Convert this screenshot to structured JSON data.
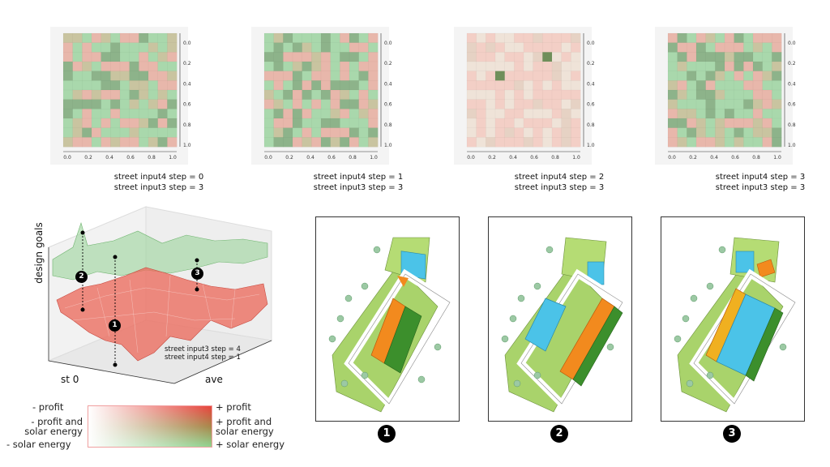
{
  "heatmaps": [
    {
      "caption_line1": "street input4 step = 0",
      "caption_line2": "street input3 step = 3"
    },
    {
      "caption_line1": "street input4 step = 1",
      "caption_line2": "street input3 step = 3"
    },
    {
      "caption_line1": "street input4 step = 2",
      "caption_line2": "street input3 step = 3"
    },
    {
      "caption_line1": "street input4 step = 3",
      "caption_line2": "street input3 step = 3"
    }
  ],
  "heatmap_axis": {
    "x_ticks": [
      "0.0",
      "0.2",
      "0.4",
      "0.6",
      "0.8",
      "1.0"
    ],
    "y_ticks": [
      "0.0",
      "0.2",
      "0.4",
      "0.6",
      "0.8",
      "1.0"
    ]
  },
  "surface_plot": {
    "z_label": "design goals",
    "x_label": "st 0",
    "y_label": "ave",
    "annotation_line1": "street input3 step = 4",
    "annotation_line2": "street input4 step = 1",
    "markers": [
      "1",
      "2",
      "3"
    ]
  },
  "legend": {
    "minus_profit": "- profit",
    "plus_profit": "+ profit",
    "minus_both": "- profit and\nsolar energy",
    "plus_both": "+ profit and\nsolar energy",
    "minus_solar": "- solar energy",
    "plus_solar": "+ solar energy",
    "colors": {
      "profit": "#e8433c",
      "both": "#a8874a",
      "solar": "#8fd48f"
    }
  },
  "site_plans": [
    {
      "number": "1"
    },
    {
      "number": "2"
    },
    {
      "number": "3"
    }
  ]
}
